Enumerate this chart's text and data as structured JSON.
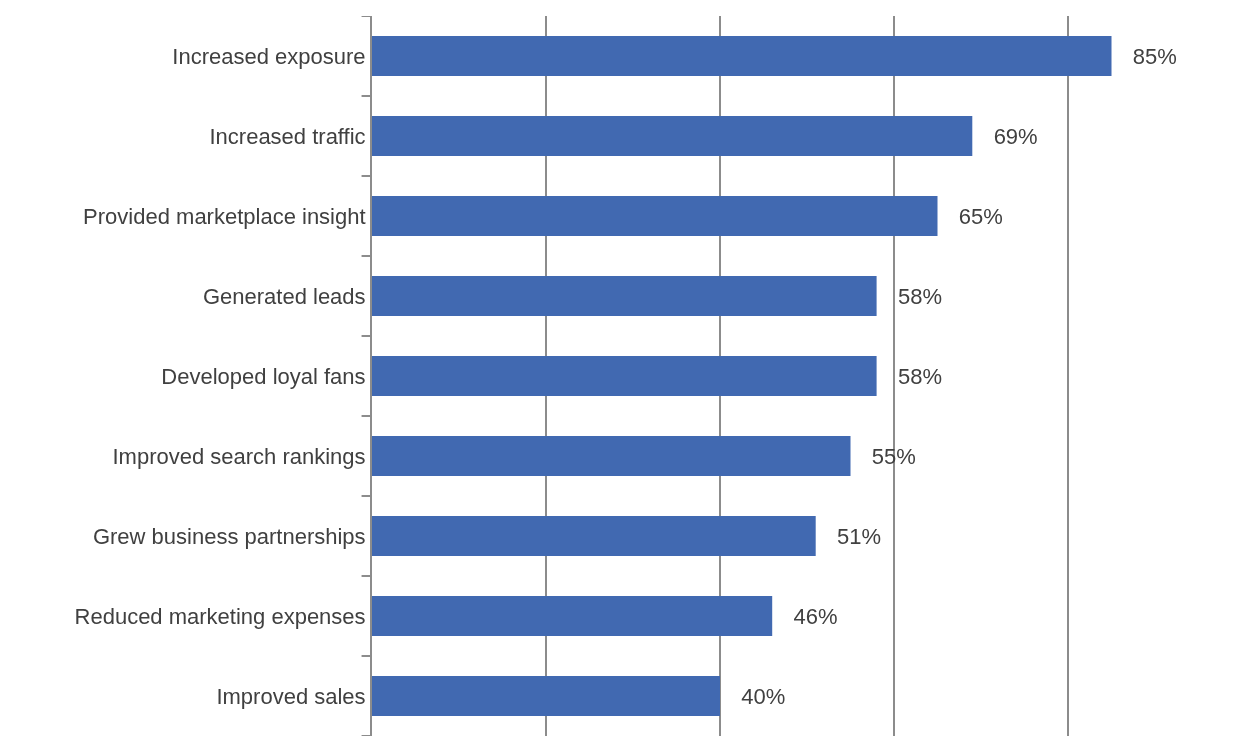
{
  "chart_data": {
    "type": "bar",
    "orientation": "horizontal",
    "categories": [
      "Increased exposure",
      "Increased traffic",
      "Provided marketplace insight",
      "Generated leads",
      "Developed loyal fans",
      "Improved search rankings",
      "Grew business partnerships",
      "Reduced marketing expenses",
      "Improved sales"
    ],
    "values": [
      85,
      69,
      65,
      58,
      58,
      55,
      51,
      46,
      40
    ],
    "value_labels": [
      "85%",
      "69%",
      "65%",
      "58%",
      "58%",
      "55%",
      "51%",
      "46%",
      "40%"
    ],
    "color": "#4169b1",
    "xlim": [
      0,
      100
    ],
    "xticks": [
      {
        "value": 0,
        "label": null
      },
      {
        "value": 20,
        "label": null
      },
      {
        "value": 40,
        "label": null
      },
      {
        "value": 60,
        "label": null
      },
      {
        "value": 80,
        "label": null
      }
    ],
    "tick_labels": "y",
    "grid": "x"
  }
}
